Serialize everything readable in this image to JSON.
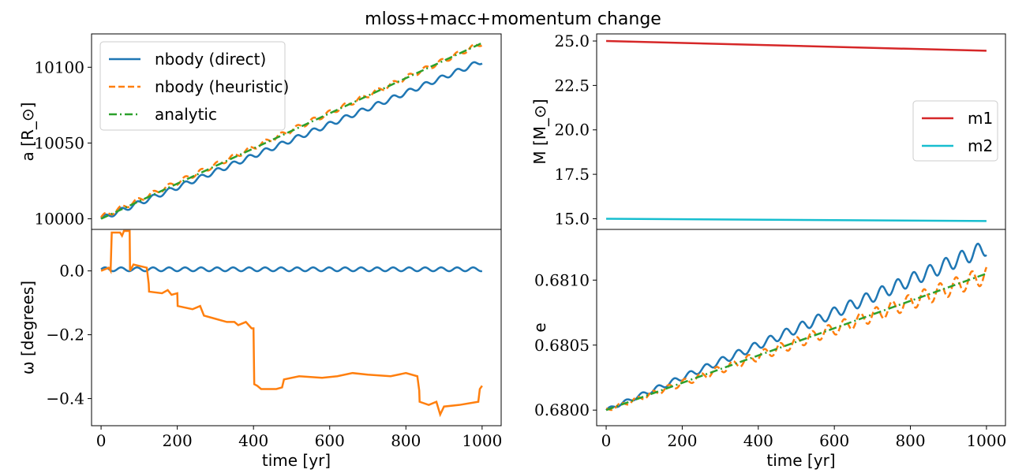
{
  "figure": {
    "title": "mloss+macc+momentum change"
  },
  "chart_data": [
    {
      "id": "sma",
      "type": "line",
      "xlabel": "",
      "ylabel": "a [R_⊙]",
      "xlim": [
        -25,
        1050
      ],
      "ylim": [
        9993,
        10122
      ],
      "yticks": [
        10000,
        10050,
        10100
      ],
      "ytick_labels": [
        "10000",
        "10050",
        "10100"
      ],
      "xticks": [],
      "legend": {
        "placement": "top-left"
      },
      "series": [
        {
          "name": "nbody (direct)",
          "color": "#1f77b4",
          "dash": "solid",
          "model": "steps",
          "y0": 10000,
          "y1": 10104,
          "step_amp": 1.6
        },
        {
          "name": "nbody (heuristic)",
          "color": "#ff7f0e",
          "dash": "dashed",
          "model": "steps",
          "y0": 10001,
          "y1": 10116,
          "step_amp": 1.6
        },
        {
          "name": "analytic",
          "color": "#2ca02c",
          "dash": "dashdot",
          "model": "linear",
          "y0": 10000,
          "y1": 10116
        }
      ]
    },
    {
      "id": "mass",
      "type": "line",
      "xlabel": "",
      "ylabel": "M [M_⊙]",
      "xlim": [
        -25,
        1050
      ],
      "ylim": [
        14.4,
        25.4
      ],
      "yticks": [
        15.0,
        17.5,
        20.0,
        22.5,
        25.0
      ],
      "ytick_labels": [
        "15.0",
        "17.5",
        "20.0",
        "22.5",
        "25.0"
      ],
      "xticks": [],
      "legend": {
        "placement": "center-right"
      },
      "series": [
        {
          "name": "m1",
          "color": "#d62728",
          "dash": "solid",
          "model": "linear",
          "y0": 25.0,
          "y1": 24.45
        },
        {
          "name": "m2",
          "color": "#17becf",
          "dash": "solid",
          "model": "linear",
          "y0": 15.0,
          "y1": 14.87
        }
      ]
    },
    {
      "id": "omega",
      "type": "line",
      "xlabel": "time [yr]",
      "ylabel": "ω [degrees]",
      "xlim": [
        -25,
        1050
      ],
      "ylim": [
        -0.485,
        0.13
      ],
      "yticks": [
        0.0,
        -0.2,
        -0.4
      ],
      "ytick_labels": [
        "0.0",
        "−0.2",
        "−0.4"
      ],
      "xticks": [
        0,
        200,
        400,
        600,
        800,
        1000
      ],
      "xtick_labels": [
        "0",
        "200",
        "400",
        "600",
        "800",
        "1000"
      ],
      "series": [
        {
          "name": "nbody (direct)",
          "color": "#1f77b4",
          "dash": "solid",
          "model": "osc",
          "y0": 0.005,
          "amp": 0.006
        },
        {
          "name": "nbody (heuristic)",
          "color": "#ff7f0e",
          "dash": "solid",
          "model": "segments",
          "points": [
            [
              0,
              0
            ],
            [
              20,
              0.01
            ],
            [
              25,
              0.0
            ],
            [
              28,
              0.12
            ],
            [
              50,
              0.12
            ],
            [
              55,
              0.11
            ],
            [
              60,
              0.125
            ],
            [
              75,
              0.125
            ],
            [
              76,
              0.0
            ],
            [
              85,
              0.02
            ],
            [
              120,
              0.01
            ],
            [
              125,
              -0.04
            ],
            [
              126,
              -0.065
            ],
            [
              160,
              -0.07
            ],
            [
              175,
              -0.06
            ],
            [
              185,
              -0.075
            ],
            [
              200,
              -0.07
            ],
            [
              201,
              -0.11
            ],
            [
              240,
              -0.12
            ],
            [
              260,
              -0.11
            ],
            [
              270,
              -0.14
            ],
            [
              300,
              -0.15
            ],
            [
              330,
              -0.16
            ],
            [
              350,
              -0.16
            ],
            [
              360,
              -0.17
            ],
            [
              380,
              -0.16
            ],
            [
              395,
              -0.18
            ],
            [
              400,
              -0.18
            ],
            [
              402,
              -0.355
            ],
            [
              410,
              -0.36
            ],
            [
              420,
              -0.37
            ],
            [
              440,
              -0.37
            ],
            [
              460,
              -0.37
            ],
            [
              475,
              -0.365
            ],
            [
              480,
              -0.34
            ],
            [
              520,
              -0.33
            ],
            [
              580,
              -0.335
            ],
            [
              620,
              -0.33
            ],
            [
              660,
              -0.32
            ],
            [
              700,
              -0.325
            ],
            [
              760,
              -0.33
            ],
            [
              800,
              -0.32
            ],
            [
              830,
              -0.33
            ],
            [
              835,
              -0.375
            ],
            [
              836,
              -0.41
            ],
            [
              860,
              -0.42
            ],
            [
              880,
              -0.41
            ],
            [
              890,
              -0.45
            ],
            [
              900,
              -0.425
            ],
            [
              940,
              -0.42
            ],
            [
              990,
              -0.41
            ],
            [
              994,
              -0.37
            ],
            [
              1000,
              -0.36
            ]
          ]
        }
      ]
    },
    {
      "id": "ecc",
      "type": "line",
      "xlabel": "time [yr]",
      "ylabel": "e",
      "xlim": [
        -25,
        1050
      ],
      "ylim": [
        0.67988,
        0.68139
      ],
      "yticks": [
        0.68,
        0.6805,
        0.681
      ],
      "ytick_labels": [
        "0.6800",
        "0.6805",
        "0.6810"
      ],
      "xticks": [
        0,
        200,
        400,
        600,
        800,
        1000
      ],
      "xtick_labels": [
        "0",
        "200",
        "400",
        "600",
        "800",
        "1000"
      ],
      "series": [
        {
          "name": "nbody (direct)",
          "color": "#1f77b4",
          "dash": "solid",
          "model": "wave",
          "y0": 0.68,
          "y1": 0.68125,
          "amp": 6e-05,
          "period": 42
        },
        {
          "name": "nbody (heuristic)",
          "color": "#ff7f0e",
          "dash": "dashed",
          "model": "wave",
          "y0": 0.68,
          "y1": 0.68104,
          "amp": 7e-05,
          "period": 42,
          "phase": 2.2
        },
        {
          "name": "analytic",
          "color": "#2ca02c",
          "dash": "dashdot",
          "model": "linear",
          "y0": 0.68,
          "y1": 0.68105
        }
      ]
    }
  ]
}
